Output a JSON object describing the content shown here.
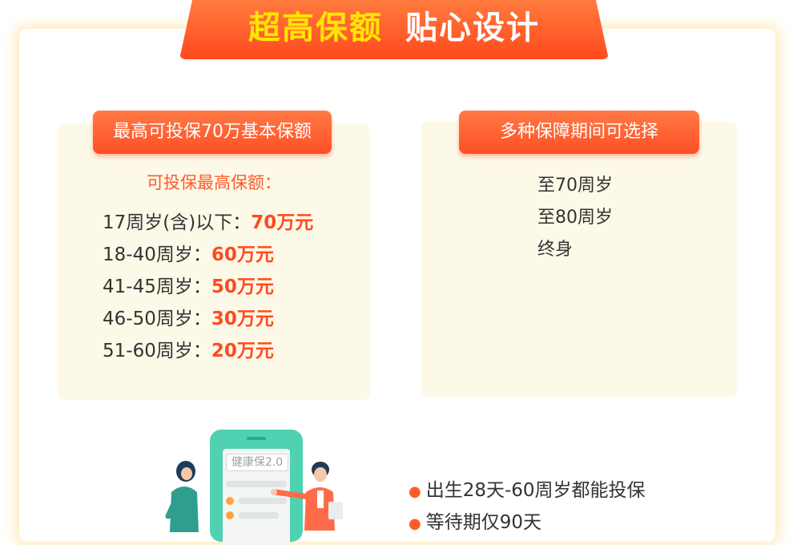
{
  "banner": {
    "title_highlight": "超高保额",
    "title_rest": "贴心设计"
  },
  "left_panel": {
    "tag": "最高可投保70万基本保额",
    "subheading": "可投保最高保额：",
    "rows": [
      {
        "label": "17周岁(含)以下：",
        "value": "70万元"
      },
      {
        "label": "18-40周岁：",
        "value": "60万元"
      },
      {
        "label": "41-45周岁：",
        "value": "50万元"
      },
      {
        "label": "46-50周岁：",
        "value": "30万元"
      },
      {
        "label": "51-60周岁：",
        "value": "20万元"
      }
    ]
  },
  "right_panel": {
    "tag": "多种保障期间可选择",
    "terms": [
      "至70周岁",
      "至80周岁",
      "终身"
    ]
  },
  "illustration": {
    "screen_label": "健康保2.0"
  },
  "features": [
    "出生28天-60周岁都能投保",
    "等待期仅90天"
  ],
  "colors": {
    "accent": "#ff4a1f",
    "highlight": "#ffe600",
    "panel_bg": "#fdf9e8",
    "phone": "#4fd1b2"
  }
}
